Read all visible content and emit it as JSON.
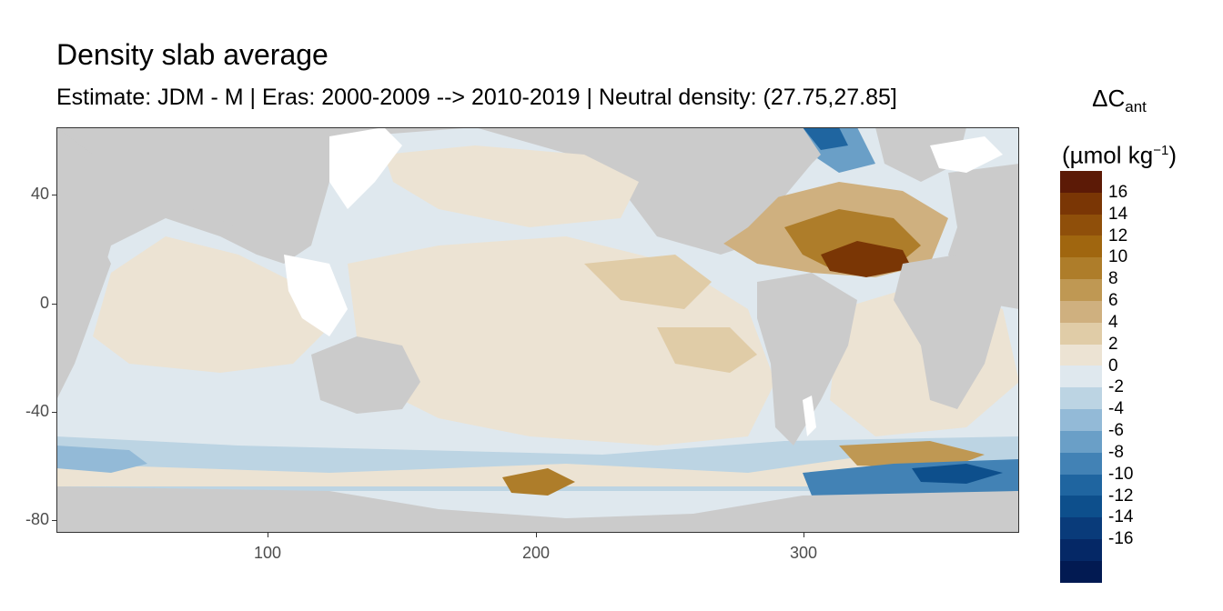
{
  "title": "Density slab average",
  "subtitle": "Estimate: JDM - M | Eras: 2000-2009 --> 2010-2019 | Neutral density: (27.75,27.85]",
  "legend": {
    "title_main": "ΔC",
    "title_sub": "ant",
    "unit_prefix": "(µmol kg",
    "unit_sup": "−1",
    "unit_suffix": ")",
    "labels": [
      "16",
      "14",
      "12",
      "10",
      "8",
      "6",
      "4",
      "2",
      "0",
      "-2",
      "-4",
      "-6",
      "-8",
      "-10",
      "-12",
      "-14",
      "-16"
    ],
    "colors": [
      "#5c1a06",
      "#7a3605",
      "#8f4f0a",
      "#a0660f",
      "#ae7d2a",
      "#bf9853",
      "#cfb07f",
      "#e0cca7",
      "#ece3d3",
      "#dfe8ee",
      "#bcd4e3",
      "#93bad7",
      "#6a9fc7",
      "#4282b5",
      "#1f65a0",
      "#0d4f8c",
      "#093b7a",
      "#052866",
      "#021a52"
    ]
  },
  "axes": {
    "x_ticks": [
      "100",
      "200",
      "300"
    ],
    "y_ticks": [
      "40",
      "0",
      "-40",
      "-80"
    ]
  },
  "map_colors": {
    "land": "#cbcbcb",
    "missing": "#ffffff",
    "near_zero_pos": "#ece3d3",
    "near_zero_neg": "#dfe8ee"
  }
}
